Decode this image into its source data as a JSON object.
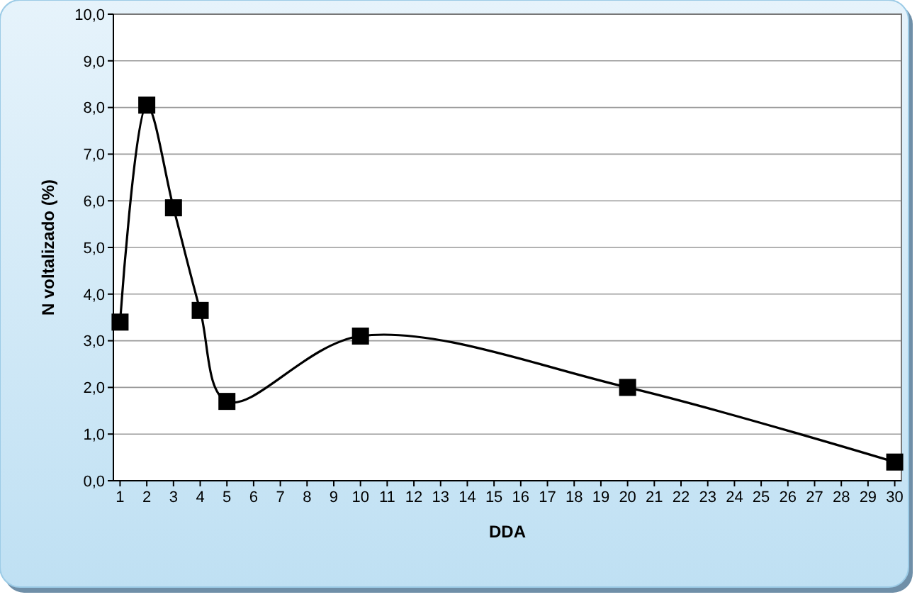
{
  "chart_data": {
    "type": "line",
    "xlabel": "DDA",
    "ylabel": "N voltalizado (%)",
    "xlim": [
      0.75,
      30.25
    ],
    "xticks": [
      1,
      2,
      3,
      4,
      5,
      6,
      7,
      8,
      9,
      10,
      11,
      12,
      13,
      14,
      15,
      16,
      17,
      18,
      19,
      20,
      21,
      22,
      23,
      24,
      25,
      26,
      27,
      28,
      29,
      30
    ],
    "ylim": [
      0,
      10
    ],
    "yticks": [
      {
        "value": 0,
        "label": "0,0"
      },
      {
        "value": 1,
        "label": "1,0"
      },
      {
        "value": 2,
        "label": "2,0"
      },
      {
        "value": 3,
        "label": "3,0"
      },
      {
        "value": 4,
        "label": "4,0"
      },
      {
        "value": 5,
        "label": "5,0"
      },
      {
        "value": 6,
        "label": "6,0"
      },
      {
        "value": 7,
        "label": "7,0"
      },
      {
        "value": 8,
        "label": "8,0"
      },
      {
        "value": 9,
        "label": "9,0"
      },
      {
        "value": 10,
        "label": "10,0"
      }
    ],
    "grid": "y",
    "marker": "square",
    "line_style": "solid",
    "series": [
      {
        "color": "#000000",
        "x": [
          1,
          2,
          3,
          4,
          5,
          10,
          20,
          30
        ],
        "values": [
          3.4,
          8.05,
          5.85,
          3.65,
          1.7,
          3.1,
          2.0,
          0.4
        ]
      }
    ]
  }
}
